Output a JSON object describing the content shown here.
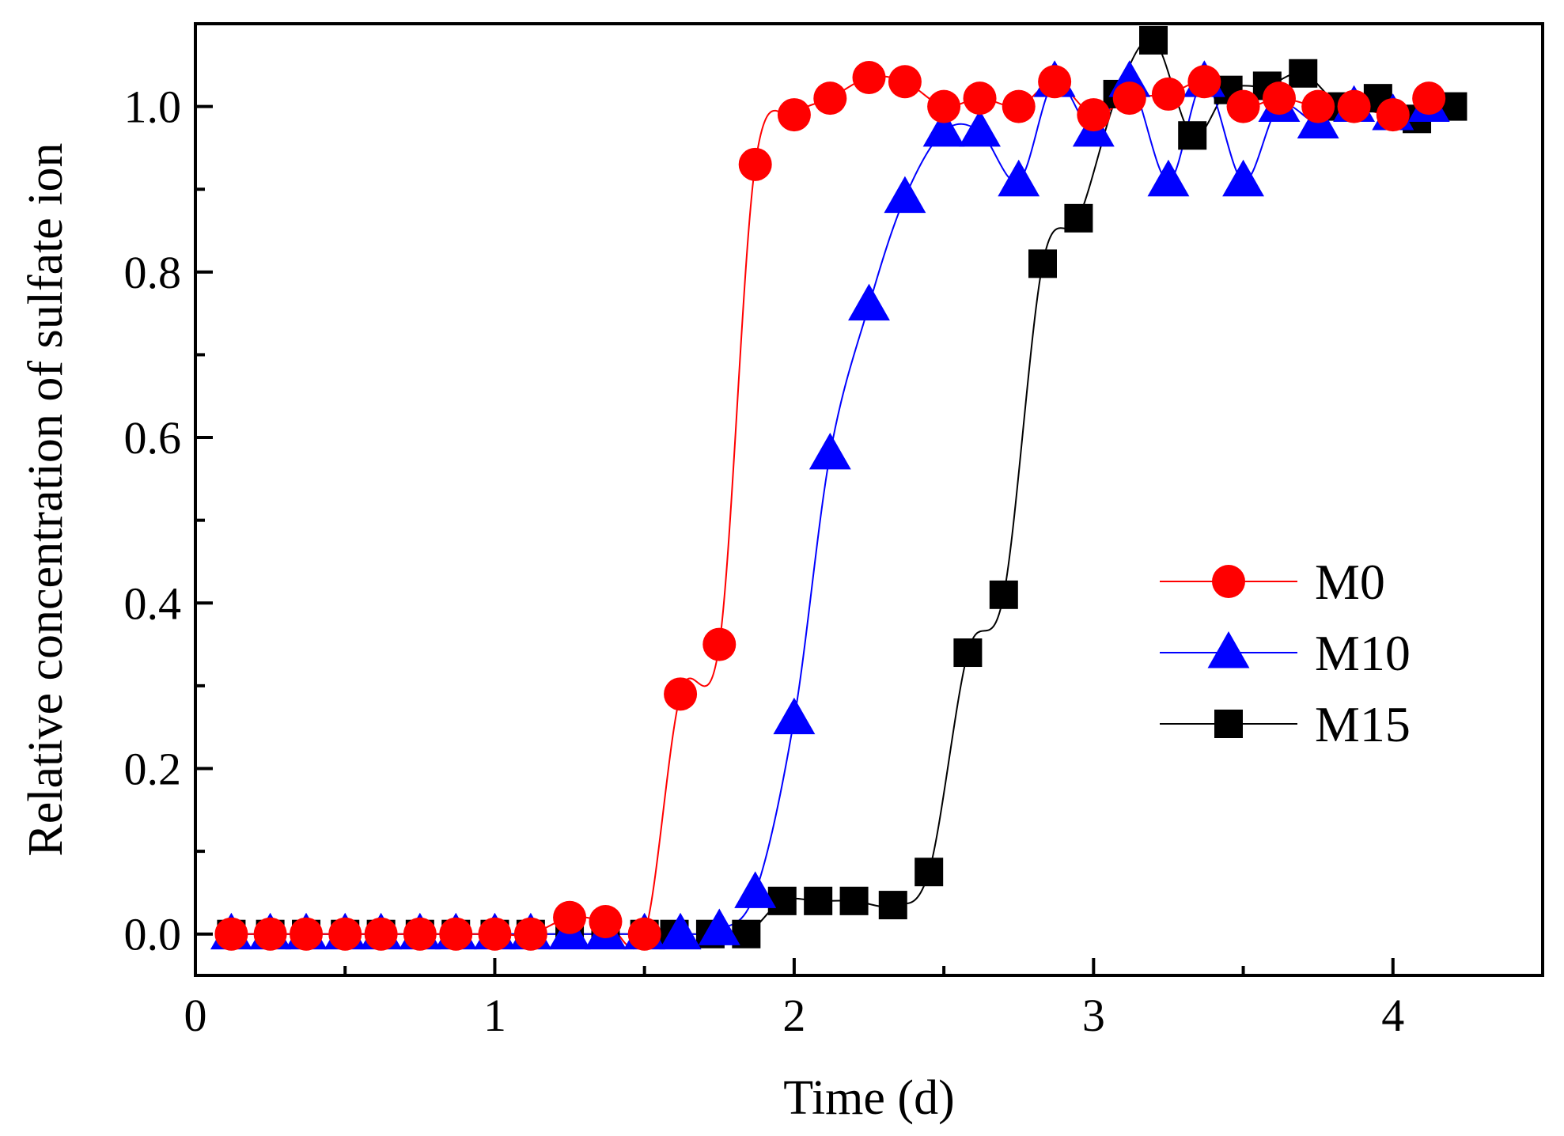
{
  "chart_data": {
    "type": "line",
    "title": "",
    "xlabel": "Time  (d)",
    "ylabel": "Relative concentration of sulfate ion",
    "xlim": [
      0,
      4.5
    ],
    "ylim": [
      -0.05,
      1.1
    ],
    "xticks": [
      0,
      1,
      2,
      3,
      4
    ],
    "xtick_labels": [
      "0",
      "1",
      "2",
      "3",
      "4"
    ],
    "yticks": [
      0.0,
      0.2,
      0.4,
      0.6,
      0.8,
      1.0
    ],
    "ytick_labels": [
      "0.0",
      "0.2",
      "0.4",
      "0.6",
      "0.8",
      "1.0"
    ],
    "grid": false,
    "legend_position": "right",
    "series": [
      {
        "name": "M0",
        "color": "#ff0000",
        "marker": "circle",
        "x": [
          0.12,
          0.25,
          0.37,
          0.5,
          0.62,
          0.75,
          0.87,
          1.0,
          1.12,
          1.25,
          1.37,
          1.5,
          1.62,
          1.75,
          1.87,
          2.0,
          2.12,
          2.25,
          2.37,
          2.5,
          2.62,
          2.75,
          2.87,
          3.0,
          3.12,
          3.25,
          3.37,
          3.5,
          3.62,
          3.75,
          3.87,
          4.0,
          4.12
        ],
        "y": [
          0.0,
          0.0,
          0.0,
          0.0,
          0.0,
          0.0,
          0.0,
          0.0,
          0.0,
          0.02,
          0.015,
          0.0,
          0.29,
          0.35,
          0.93,
          0.99,
          1.01,
          1.035,
          1.03,
          1.0,
          1.01,
          1.0,
          1.03,
          0.99,
          1.01,
          1.015,
          1.03,
          1.0,
          1.01,
          1.0,
          1.0,
          0.99,
          1.01
        ]
      },
      {
        "name": "M10",
        "color": "#0000ff",
        "marker": "triangle",
        "x": [
          0.12,
          0.25,
          0.37,
          0.5,
          0.62,
          0.75,
          0.87,
          1.0,
          1.12,
          1.25,
          1.37,
          1.5,
          1.62,
          1.75,
          1.87,
          2.0,
          2.12,
          2.25,
          2.37,
          2.5,
          2.62,
          2.75,
          2.87,
          3.0,
          3.12,
          3.25,
          3.37,
          3.5,
          3.62,
          3.75,
          3.87,
          4.0,
          4.12
        ],
        "y": [
          0.0,
          0.0,
          0.0,
          0.0,
          0.0,
          0.0,
          0.0,
          0.0,
          0.0,
          0.0,
          0.0,
          0.0,
          0.0,
          0.005,
          0.05,
          0.26,
          0.58,
          0.76,
          0.89,
          0.97,
          0.97,
          0.91,
          1.03,
          0.97,
          1.03,
          0.91,
          1.03,
          0.91,
          1.0,
          0.98,
          1.0,
          0.99,
          1.0
        ]
      },
      {
        "name": "M15",
        "color": "#000000",
        "marker": "square",
        "x": [
          0.12,
          0.25,
          0.37,
          0.5,
          0.62,
          0.75,
          0.87,
          1.0,
          1.12,
          1.25,
          1.37,
          1.5,
          1.6,
          1.72,
          1.84,
          1.96,
          2.08,
          2.2,
          2.33,
          2.45,
          2.58,
          2.7,
          2.83,
          2.95,
          3.08,
          3.2,
          3.33,
          3.45,
          3.58,
          3.7,
          3.83,
          3.95,
          4.08,
          4.2
        ],
        "y": [
          0.0,
          0.0,
          0.0,
          0.0,
          0.0,
          0.0,
          0.0,
          0.0,
          0.0,
          0.0,
          0.0,
          0.0,
          0.0,
          0.0,
          0.0,
          0.04,
          0.04,
          0.04,
          0.035,
          0.075,
          0.34,
          0.41,
          0.81,
          0.865,
          1.015,
          1.08,
          0.965,
          1.02,
          1.025,
          1.04,
          1.0,
          1.01,
          0.985,
          1.0
        ]
      }
    ]
  }
}
